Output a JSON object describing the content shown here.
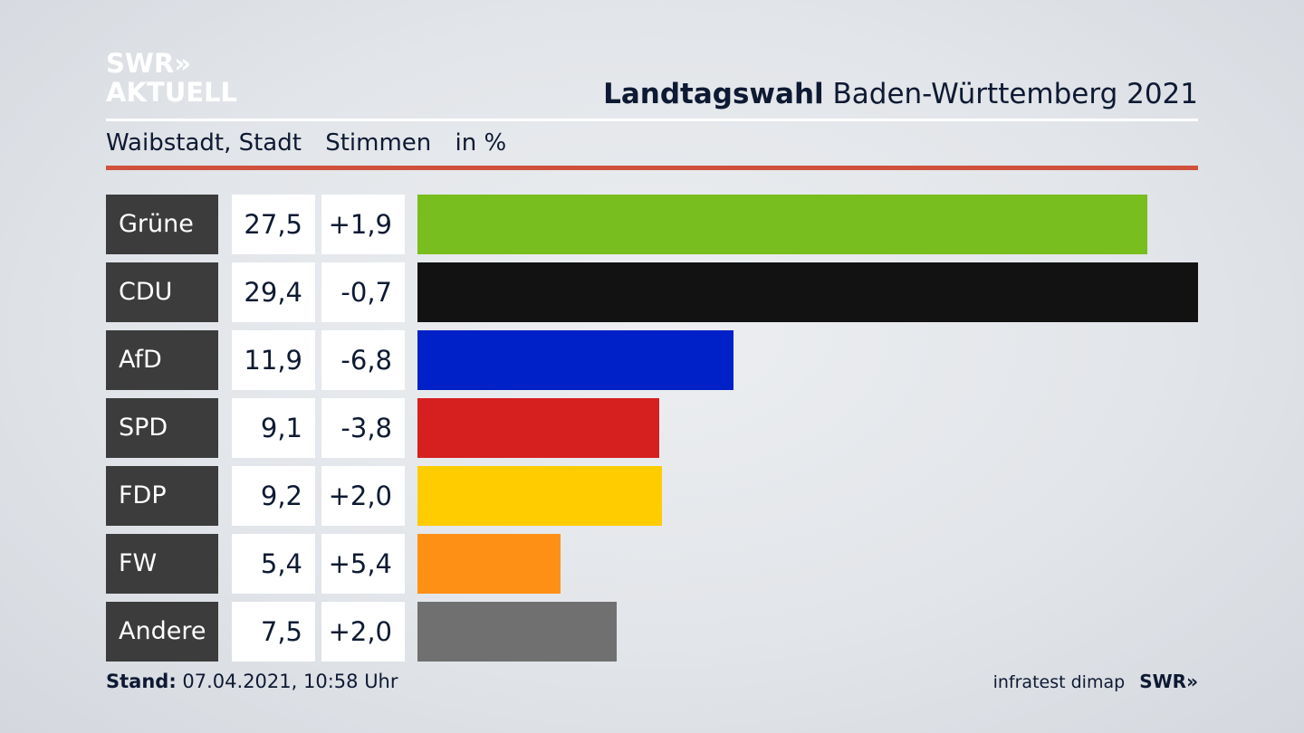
{
  "brand": {
    "logo_line1": "SWR»",
    "logo_line2": "AKTUELL",
    "footer_logo": "SWR»"
  },
  "header": {
    "title_bold": "Landtagswahl",
    "title_rest": "Baden-Württemberg 2021"
  },
  "subheader": {
    "place": "Waibstadt, Stadt",
    "measure": "Stimmen",
    "unit": "in %"
  },
  "colors": {
    "accent_rule": "#d0503c"
  },
  "chart_data": {
    "type": "bar",
    "orientation": "horizontal",
    "categories": [
      "Grüne",
      "CDU",
      "AfD",
      "SPD",
      "FDP",
      "FW",
      "Andere"
    ],
    "values": [
      27.5,
      29.4,
      11.9,
      9.1,
      9.2,
      5.4,
      7.5
    ],
    "value_labels": [
      "27,5",
      "29,4",
      "11,9",
      "9,1",
      "9,2",
      "5,4",
      "7,5"
    ],
    "change_labels": [
      "+1,9",
      "-0,7",
      "-6,8",
      "-3,8",
      "+2,0",
      "+5,4",
      "+2,0"
    ],
    "changes": [
      1.9,
      -0.7,
      -6.8,
      -3.8,
      2.0,
      5.4,
      2.0
    ],
    "colors": [
      "#78be1e",
      "#121212",
      "#0021c8",
      "#d61f1f",
      "#ffcc00",
      "#ff9016",
      "#707070"
    ],
    "xlim": [
      0,
      29.4
    ],
    "grid": false,
    "legend": "none"
  },
  "footer": {
    "stand_label": "Stand:",
    "stand_value": "07.04.2021, 10:58 Uhr",
    "source": "infratest dimap"
  }
}
